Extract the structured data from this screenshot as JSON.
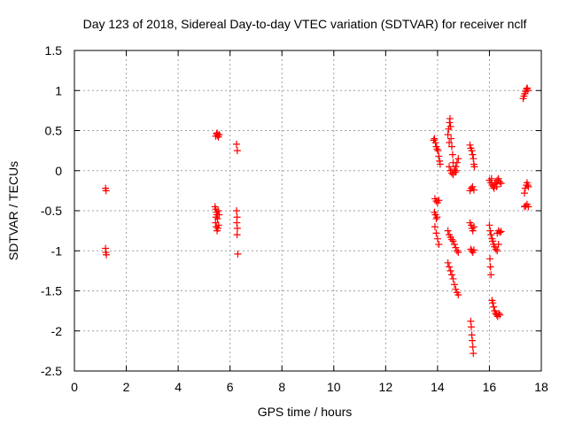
{
  "chart_data": {
    "type": "scatter",
    "title": "Day 123 of 2018, Sidereal Day-to-day VTEC variation (SDTVAR) for receiver nclf",
    "xlabel": "GPS time / hours",
    "ylabel": "SDTVAR / TECUs",
    "xlim": [
      0,
      18
    ],
    "ylim": [
      -2.5,
      1.5
    ],
    "xticks": [
      0,
      2,
      4,
      6,
      8,
      10,
      12,
      14,
      16,
      18
    ],
    "yticks": [
      1.5,
      1,
      0.5,
      0,
      -0.5,
      -1,
      -1.5,
      -2,
      -2.5
    ],
    "grid": true,
    "marker": "+",
    "marker_color": "#ff0000",
    "series": [
      {
        "name": "SDTVAR",
        "points": [
          [
            1.2,
            -0.22
          ],
          [
            1.22,
            -0.25
          ],
          [
            1.2,
            -0.97
          ],
          [
            1.21,
            -1.02
          ],
          [
            1.23,
            -1.05
          ],
          [
            5.45,
            0.43
          ],
          [
            5.48,
            0.46
          ],
          [
            5.52,
            0.44
          ],
          [
            5.55,
            0.42
          ],
          [
            5.58,
            0.45
          ],
          [
            5.5,
            0.47
          ],
          [
            5.42,
            -0.45
          ],
          [
            5.45,
            -0.48
          ],
          [
            5.48,
            -0.52
          ],
          [
            5.5,
            -0.55
          ],
          [
            5.52,
            -0.6
          ],
          [
            5.44,
            -0.65
          ],
          [
            5.47,
            -0.7
          ],
          [
            5.5,
            -0.75
          ],
          [
            5.53,
            -0.72
          ],
          [
            5.56,
            -0.68
          ],
          [
            5.58,
            -0.55
          ],
          [
            5.46,
            -0.58
          ],
          [
            5.54,
            -0.5
          ],
          [
            6.25,
            0.33
          ],
          [
            6.28,
            0.25
          ],
          [
            6.25,
            -0.5
          ],
          [
            6.27,
            -0.58
          ],
          [
            6.26,
            -0.65
          ],
          [
            6.28,
            -0.72
          ],
          [
            6.27,
            -0.8
          ],
          [
            6.3,
            -1.04
          ],
          [
            13.85,
            0.38
          ],
          [
            13.88,
            0.4
          ],
          [
            13.92,
            0.35
          ],
          [
            13.95,
            0.3
          ],
          [
            13.98,
            0.27
          ],
          [
            14.02,
            0.25
          ],
          [
            14.05,
            0.18
          ],
          [
            14.08,
            0.12
          ],
          [
            14.1,
            0.08
          ],
          [
            13.9,
            -0.35
          ],
          [
            13.95,
            -0.38
          ],
          [
            14.0,
            -0.4
          ],
          [
            14.05,
            -0.37
          ],
          [
            13.88,
            -0.52
          ],
          [
            13.92,
            -0.55
          ],
          [
            13.95,
            -0.6
          ],
          [
            13.98,
            -0.58
          ],
          [
            13.9,
            -0.7
          ],
          [
            13.95,
            -0.78
          ],
          [
            14.0,
            -0.85
          ],
          [
            14.05,
            -0.92
          ],
          [
            14.4,
            0.45
          ],
          [
            14.43,
            0.52
          ],
          [
            14.46,
            0.6
          ],
          [
            14.48,
            0.65
          ],
          [
            14.5,
            0.55
          ],
          [
            14.45,
            0.35
          ],
          [
            14.52,
            0.4
          ],
          [
            14.55,
            0.3
          ],
          [
            14.58,
            0.2
          ],
          [
            14.6,
            0.1
          ],
          [
            14.45,
            0.05
          ],
          [
            14.5,
            0.0
          ],
          [
            14.55,
            -0.03
          ],
          [
            14.6,
            -0.05
          ],
          [
            14.65,
            0.02
          ],
          [
            14.7,
            0.05
          ],
          [
            14.75,
            0.1
          ],
          [
            14.8,
            0.15
          ],
          [
            14.68,
            -0.02
          ],
          [
            14.72,
            0.0
          ],
          [
            14.4,
            -0.75
          ],
          [
            14.45,
            -0.8
          ],
          [
            14.5,
            -0.83
          ],
          [
            14.55,
            -0.86
          ],
          [
            14.6,
            -0.88
          ],
          [
            14.65,
            -0.92
          ],
          [
            14.7,
            -0.96
          ],
          [
            14.75,
            -1.0
          ],
          [
            14.8,
            -1.02
          ],
          [
            14.4,
            -1.15
          ],
          [
            14.45,
            -1.2
          ],
          [
            14.5,
            -1.25
          ],
          [
            14.55,
            -1.3
          ],
          [
            14.6,
            -1.35
          ],
          [
            14.65,
            -1.42
          ],
          [
            14.7,
            -1.48
          ],
          [
            14.75,
            -1.52
          ],
          [
            14.8,
            -1.55
          ],
          [
            15.25,
            0.32
          ],
          [
            15.28,
            0.28
          ],
          [
            15.32,
            0.25
          ],
          [
            15.35,
            0.2
          ],
          [
            15.38,
            0.15
          ],
          [
            15.4,
            0.08
          ],
          [
            15.42,
            0.05
          ],
          [
            15.25,
            -0.25
          ],
          [
            15.3,
            -0.22
          ],
          [
            15.35,
            -0.2
          ],
          [
            15.4,
            -0.24
          ],
          [
            15.25,
            -0.65
          ],
          [
            15.3,
            -0.68
          ],
          [
            15.33,
            -0.72
          ],
          [
            15.36,
            -0.75
          ],
          [
            15.4,
            -0.7
          ],
          [
            15.28,
            -0.98
          ],
          [
            15.32,
            -1.0
          ],
          [
            15.36,
            -1.02
          ],
          [
            15.4,
            -0.99
          ],
          [
            15.28,
            -1.88
          ],
          [
            15.3,
            -1.95
          ],
          [
            15.32,
            -2.05
          ],
          [
            15.34,
            -2.12
          ],
          [
            15.36,
            -2.2
          ],
          [
            15.38,
            -2.28
          ],
          [
            16.0,
            -0.12
          ],
          [
            16.05,
            -0.15
          ],
          [
            16.1,
            -0.18
          ],
          [
            16.15,
            -0.2
          ],
          [
            16.2,
            -0.17
          ],
          [
            16.25,
            -0.15
          ],
          [
            16.3,
            -0.12
          ],
          [
            16.35,
            -0.1
          ],
          [
            16.4,
            -0.14
          ],
          [
            16.45,
            -0.16
          ],
          [
            16.08,
            -0.1
          ],
          [
            16.18,
            -0.22
          ],
          [
            16.28,
            -0.2
          ],
          [
            16.0,
            -0.68
          ],
          [
            16.03,
            -0.75
          ],
          [
            16.06,
            -0.8
          ],
          [
            16.1,
            -0.85
          ],
          [
            16.13,
            -0.88
          ],
          [
            16.16,
            -0.92
          ],
          [
            16.2,
            -0.95
          ],
          [
            16.25,
            -0.98
          ],
          [
            16.3,
            -1.0
          ],
          [
            16.35,
            -0.92
          ],
          [
            16.3,
            -0.78
          ],
          [
            16.35,
            -0.75
          ],
          [
            16.4,
            -0.77
          ],
          [
            16.45,
            -0.76
          ],
          [
            16.02,
            -1.1
          ],
          [
            16.04,
            -1.2
          ],
          [
            16.06,
            -1.3
          ],
          [
            16.1,
            -1.62
          ],
          [
            16.13,
            -1.65
          ],
          [
            16.16,
            -1.7
          ],
          [
            16.2,
            -1.75
          ],
          [
            16.24,
            -1.78
          ],
          [
            16.28,
            -1.8
          ],
          [
            16.32,
            -1.82
          ],
          [
            16.36,
            -1.78
          ],
          [
            16.4,
            -1.8
          ],
          [
            17.35,
            -0.28
          ],
          [
            17.38,
            -0.22
          ],
          [
            17.42,
            -0.18
          ],
          [
            17.45,
            -0.15
          ],
          [
            17.48,
            -0.18
          ],
          [
            17.5,
            -0.2
          ],
          [
            17.35,
            -0.45
          ],
          [
            17.4,
            -0.44
          ],
          [
            17.45,
            -0.42
          ],
          [
            17.5,
            -0.45
          ],
          [
            17.3,
            0.9
          ],
          [
            17.33,
            0.93
          ],
          [
            17.36,
            0.96
          ],
          [
            17.4,
            0.99
          ],
          [
            17.43,
            1.02
          ],
          [
            17.46,
            1.03
          ],
          [
            17.48,
            1.0
          ]
        ]
      }
    ]
  }
}
